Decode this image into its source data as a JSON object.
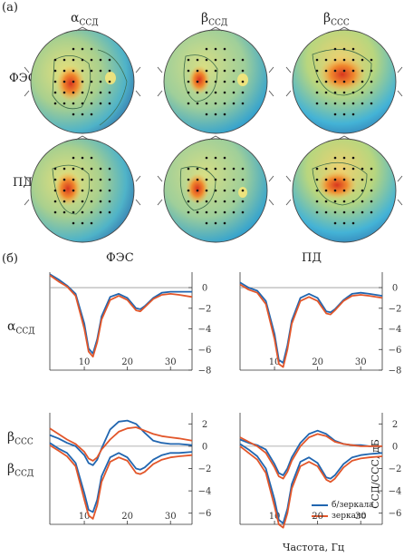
{
  "panel_a": {
    "label": "(а)",
    "columns": [
      {
        "sym": "α",
        "sub": "ССД"
      },
      {
        "sym": "β",
        "sub": "ССД"
      },
      {
        "sym": "β",
        "sub": "ССС"
      }
    ],
    "rows": [
      "ФЭС",
      "ПД"
    ]
  },
  "panel_b": {
    "label": "(б)",
    "col_titles": [
      "ФЭС",
      "ПД"
    ],
    "row_label_top": {
      "sym": "α",
      "sub": "ССД"
    },
    "row_label_bottom_1": {
      "sym": "β",
      "sub": "ССС"
    },
    "row_label_bottom_2": {
      "sym": "β",
      "sub": "ССД"
    },
    "xlabel": "Частота, Гц",
    "ylabel": "ССД/ССС, дБ",
    "legend": [
      "б/зеркала",
      "зеркало"
    ],
    "colors": {
      "no_mirror": "#2166b0",
      "mirror": "#e2562a"
    }
  },
  "chart_data": [
    {
      "type": "line",
      "panel": "ФЭС / αССД",
      "xlim": [
        2,
        35
      ],
      "ylim": [
        -8,
        1.5
      ],
      "xticks": [
        10,
        20,
        30
      ],
      "yticks": [
        0,
        -2,
        -4,
        -6,
        -8
      ],
      "series": [
        {
          "name": "б/зеркала",
          "x": [
            2,
            4,
            6,
            8,
            10,
            11,
            12,
            13,
            14,
            16,
            18,
            20,
            22,
            23,
            24,
            26,
            28,
            30,
            32,
            35
          ],
          "y": [
            1.3,
            0.8,
            0.2,
            -0.6,
            -3.5,
            -5.9,
            -6.4,
            -5.0,
            -2.8,
            -0.9,
            -0.6,
            -1.0,
            -2.0,
            -2.1,
            -1.8,
            -1.0,
            -0.5,
            -0.4,
            -0.4,
            -0.4
          ]
        },
        {
          "name": "зеркало",
          "x": [
            2,
            4,
            6,
            8,
            10,
            11,
            12,
            13,
            14,
            16,
            18,
            20,
            22,
            23,
            24,
            26,
            28,
            30,
            32,
            35
          ],
          "y": [
            1.2,
            0.6,
            0.1,
            -0.8,
            -4.0,
            -6.2,
            -6.7,
            -5.3,
            -3.1,
            -1.2,
            -0.8,
            -1.2,
            -2.2,
            -2.3,
            -1.9,
            -1.1,
            -0.7,
            -0.6,
            -0.7,
            -0.9
          ]
        }
      ]
    },
    {
      "type": "line",
      "panel": "ПД / αССД",
      "xlim": [
        2,
        35
      ],
      "ylim": [
        -8,
        1.5
      ],
      "xticks": [
        10,
        20,
        30
      ],
      "yticks": [
        0,
        -2,
        -4,
        -6,
        -8
      ],
      "series": [
        {
          "name": "б/зеркала",
          "x": [
            2,
            4,
            6,
            8,
            10,
            11,
            12,
            13,
            14,
            16,
            18,
            20,
            22,
            23,
            24,
            26,
            28,
            30,
            32,
            35
          ],
          "y": [
            0.5,
            0.0,
            -0.3,
            -1.3,
            -4.5,
            -7.0,
            -7.3,
            -5.6,
            -3.2,
            -1.0,
            -0.6,
            -1.0,
            -2.3,
            -2.4,
            -2.1,
            -1.2,
            -0.6,
            -0.5,
            -0.6,
            -0.8
          ]
        },
        {
          "name": "зеркало",
          "x": [
            2,
            4,
            6,
            8,
            10,
            11,
            12,
            13,
            14,
            16,
            18,
            20,
            22,
            23,
            24,
            26,
            28,
            30,
            32,
            35
          ],
          "y": [
            0.3,
            -0.2,
            -0.5,
            -1.6,
            -5.0,
            -7.4,
            -7.7,
            -6.0,
            -3.5,
            -1.3,
            -0.9,
            -1.3,
            -2.5,
            -2.6,
            -2.2,
            -1.3,
            -0.8,
            -0.7,
            -0.8,
            -1.0
          ]
        }
      ]
    },
    {
      "type": "line",
      "panel": "ФЭС / βССС (upper), βССД (lower)",
      "xlim": [
        2,
        35
      ],
      "ylim": [
        -7,
        3
      ],
      "xticks": [
        10,
        20,
        30
      ],
      "yticks": [
        2,
        0,
        -2,
        -4,
        -6
      ],
      "series": [
        {
          "name": "βССС б/зеркала",
          "x": [
            2,
            4,
            6,
            8,
            10,
            11,
            12,
            13,
            14,
            16,
            18,
            20,
            22,
            24,
            26,
            28,
            30,
            32,
            35
          ],
          "y": [
            1.0,
            0.7,
            0.3,
            0.0,
            -0.8,
            -1.5,
            -1.7,
            -1.2,
            -0.2,
            1.5,
            2.2,
            2.3,
            2.0,
            1.2,
            0.5,
            0.3,
            0.2,
            0.2,
            0.1
          ]
        },
        {
          "name": "βССС зеркало",
          "x": [
            2,
            4,
            6,
            8,
            10,
            11,
            12,
            13,
            14,
            16,
            18,
            20,
            22,
            24,
            26,
            28,
            30,
            32,
            35
          ],
          "y": [
            1.6,
            1.1,
            0.6,
            0.2,
            -0.5,
            -1.1,
            -1.3,
            -1.0,
            -0.3,
            0.6,
            1.3,
            1.6,
            1.7,
            1.4,
            1.1,
            0.9,
            0.8,
            0.7,
            0.5
          ]
        },
        {
          "name": "βССД б/зеркала",
          "x": [
            2,
            4,
            6,
            8,
            10,
            11,
            12,
            13,
            14,
            16,
            18,
            20,
            22,
            23,
            24,
            26,
            28,
            30,
            32,
            35
          ],
          "y": [
            0.3,
            -0.2,
            -0.6,
            -1.5,
            -4.2,
            -5.7,
            -5.9,
            -4.8,
            -2.7,
            -1.0,
            -0.6,
            -1.0,
            -2.0,
            -2.1,
            -1.9,
            -1.2,
            -0.8,
            -0.6,
            -0.6,
            -0.5
          ]
        },
        {
          "name": "βССД зеркало",
          "x": [
            2,
            4,
            6,
            8,
            10,
            11,
            12,
            13,
            14,
            16,
            18,
            20,
            22,
            23,
            24,
            26,
            28,
            30,
            32,
            35
          ],
          "y": [
            0.1,
            -0.4,
            -0.9,
            -1.8,
            -4.8,
            -6.2,
            -6.5,
            -5.3,
            -3.2,
            -1.4,
            -1.0,
            -1.3,
            -2.4,
            -2.5,
            -2.3,
            -1.6,
            -1.2,
            -1.0,
            -0.9,
            -0.8
          ]
        }
      ]
    },
    {
      "type": "line",
      "panel": "ПД / βССС (upper), βССД (lower)",
      "xlim": [
        2,
        35
      ],
      "ylim": [
        -7,
        3
      ],
      "xticks": [
        10,
        20,
        30
      ],
      "yticks": [
        2,
        0,
        -2,
        -4,
        -6
      ],
      "series": [
        {
          "name": "βССС б/зеркала",
          "x": [
            2,
            4,
            6,
            8,
            10,
            11,
            12,
            13,
            14,
            16,
            18,
            20,
            22,
            24,
            26,
            28,
            30,
            32,
            35
          ],
          "y": [
            0.6,
            0.3,
            0.1,
            -0.3,
            -1.6,
            -2.4,
            -2.6,
            -2.0,
            -1.0,
            0.3,
            1.1,
            1.4,
            1.1,
            0.5,
            0.2,
            0.1,
            0.1,
            0.0,
            0.0
          ]
        },
        {
          "name": "βССС зеркало",
          "x": [
            2,
            4,
            6,
            8,
            10,
            11,
            12,
            13,
            14,
            16,
            18,
            20,
            22,
            24,
            26,
            28,
            30,
            32,
            35
          ],
          "y": [
            0.8,
            0.4,
            0.0,
            -0.6,
            -1.9,
            -2.7,
            -2.9,
            -2.3,
            -1.3,
            0.0,
            0.8,
            1.1,
            0.9,
            0.4,
            0.2,
            0.1,
            0.0,
            0.0,
            0.0
          ]
        },
        {
          "name": "βССД б/зеркала",
          "x": [
            2,
            4,
            6,
            8,
            10,
            11,
            12,
            13,
            14,
            16,
            18,
            20,
            22,
            23,
            24,
            26,
            28,
            30,
            32,
            35
          ],
          "y": [
            0.2,
            -0.3,
            -0.9,
            -2.0,
            -4.8,
            -6.6,
            -6.9,
            -5.6,
            -3.4,
            -1.4,
            -1.0,
            -1.5,
            -2.8,
            -2.9,
            -2.6,
            -1.6,
            -1.0,
            -0.8,
            -0.7,
            -0.6
          ]
        },
        {
          "name": "βССД зеркало",
          "x": [
            2,
            4,
            6,
            8,
            10,
            11,
            12,
            13,
            14,
            16,
            18,
            20,
            22,
            23,
            24,
            26,
            28,
            30,
            32,
            35
          ],
          "y": [
            0.0,
            -0.6,
            -1.2,
            -2.4,
            -5.4,
            -7.0,
            -7.3,
            -6.0,
            -3.8,
            -1.8,
            -1.4,
            -1.8,
            -3.0,
            -3.2,
            -2.9,
            -1.9,
            -1.3,
            -1.1,
            -1.0,
            -0.9
          ]
        }
      ]
    }
  ]
}
